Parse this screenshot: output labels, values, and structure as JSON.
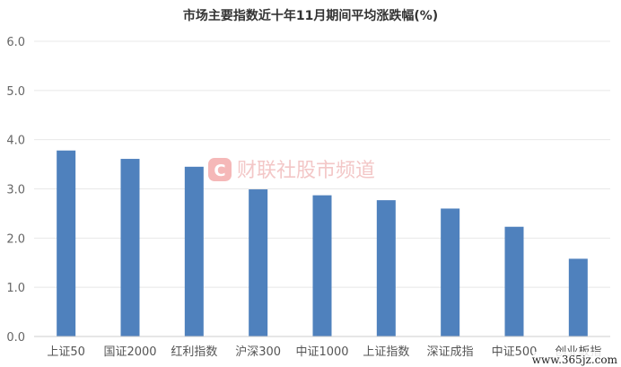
{
  "chart_data": {
    "type": "bar",
    "title": "市场主要指数近十年11月期间平均涨跌幅(%)",
    "categories": [
      "上证50",
      "国证2000",
      "红利指数",
      "沪深300",
      "中证1000",
      "上证指数",
      "深证成指",
      "中证500",
      "创业板指"
    ],
    "values": [
      3.78,
      3.61,
      3.45,
      2.99,
      2.87,
      2.77,
      2.6,
      2.23,
      1.58
    ],
    "ylim": [
      0,
      6
    ],
    "yticks": [
      "0.0",
      "1.0",
      "2.0",
      "3.0",
      "4.0",
      "5.0",
      "6.0"
    ],
    "xlabel": "",
    "ylabel": "",
    "grid": true,
    "bar_color": "#4f81bd"
  },
  "watermark": {
    "logo_letter": "C",
    "brand_text": "财联社股市频道",
    "site_text": "www.365jz.com"
  }
}
